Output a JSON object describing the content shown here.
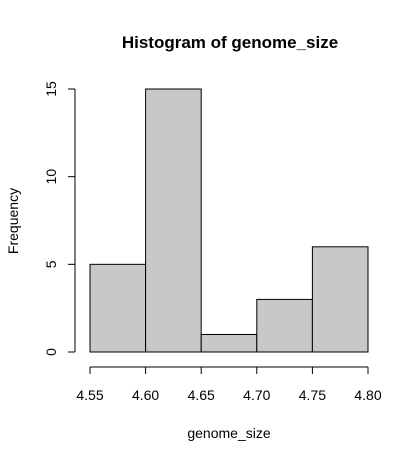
{
  "chart_data": {
    "type": "bar",
    "title": "Histogram of genome_size",
    "xlabel": "genome_size",
    "ylabel": "Frequency",
    "bins": [
      {
        "start": 4.55,
        "end": 4.6,
        "value": 5
      },
      {
        "start": 4.6,
        "end": 4.65,
        "value": 15
      },
      {
        "start": 4.65,
        "end": 4.7,
        "value": 1
      },
      {
        "start": 4.7,
        "end": 4.75,
        "value": 3
      },
      {
        "start": 4.75,
        "end": 4.8,
        "value": 6
      }
    ],
    "xlim": [
      4.55,
      4.8
    ],
    "ylim": [
      0,
      15
    ],
    "xticks": [
      "4.55",
      "4.60",
      "4.65",
      "4.70",
      "4.75",
      "4.80"
    ],
    "yticks": [
      "0",
      "5",
      "10",
      "15"
    ],
    "bar_color": "#c8c8c8",
    "grid": false,
    "legend": "none"
  }
}
